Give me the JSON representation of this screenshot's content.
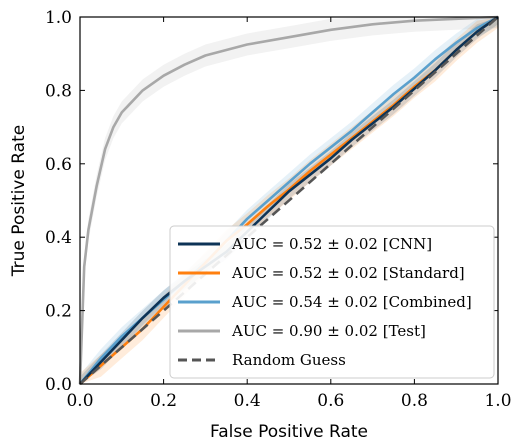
{
  "chart_data": {
    "type": "line",
    "title": "",
    "xlabel": "False Positive Rate",
    "ylabel": "True Positive Rate",
    "xlim": [
      0.0,
      1.0
    ],
    "ylim": [
      0.0,
      1.0
    ],
    "xticks": [
      "0.0",
      "0.2",
      "0.4",
      "0.6",
      "0.8",
      "1.0"
    ],
    "yticks": [
      "0.0",
      "0.2",
      "0.4",
      "0.6",
      "0.8",
      "1.0"
    ],
    "grid": false,
    "legend_position": "bottom-right",
    "series": [
      {
        "name": "AUC = 0.52 ± 0.02 [CNN]",
        "color": "#0d3356",
        "style": "solid",
        "band": 0.02,
        "x": [
          0.0,
          0.05,
          0.1,
          0.15,
          0.2,
          0.25,
          0.3,
          0.35,
          0.4,
          0.45,
          0.5,
          0.55,
          0.6,
          0.65,
          0.7,
          0.75,
          0.8,
          0.85,
          0.9,
          0.95,
          1.0
        ],
        "y": [
          0.0,
          0.06,
          0.12,
          0.18,
          0.235,
          0.28,
          0.32,
          0.36,
          0.415,
          0.47,
          0.525,
          0.57,
          0.615,
          0.665,
          0.71,
          0.755,
          0.805,
          0.855,
          0.91,
          0.96,
          1.0
        ]
      },
      {
        "name": "AUC = 0.52 ± 0.02 [Standard]",
        "color": "#ff7f0e",
        "style": "solid",
        "band": 0.03,
        "x": [
          0.0,
          0.05,
          0.1,
          0.15,
          0.2,
          0.25,
          0.3,
          0.35,
          0.4,
          0.45,
          0.5,
          0.55,
          0.6,
          0.65,
          0.7,
          0.75,
          0.8,
          0.85,
          0.9,
          0.95,
          1.0
        ],
        "y": [
          0.0,
          0.05,
          0.1,
          0.15,
          0.21,
          0.27,
          0.33,
          0.39,
          0.435,
          0.485,
          0.53,
          0.58,
          0.625,
          0.67,
          0.715,
          0.76,
          0.81,
          0.855,
          0.91,
          0.96,
          1.0
        ]
      },
      {
        "name": "AUC = 0.54 ± 0.02 [Combined]",
        "color": "#5aa0cd",
        "style": "solid",
        "band": 0.025,
        "x": [
          0.0,
          0.05,
          0.1,
          0.15,
          0.2,
          0.25,
          0.3,
          0.35,
          0.4,
          0.45,
          0.5,
          0.55,
          0.6,
          0.65,
          0.7,
          0.75,
          0.8,
          0.85,
          0.9,
          0.95,
          1.0
        ],
        "y": [
          0.0,
          0.07,
          0.13,
          0.18,
          0.23,
          0.28,
          0.33,
          0.39,
          0.45,
          0.5,
          0.55,
          0.6,
          0.645,
          0.69,
          0.74,
          0.79,
          0.835,
          0.885,
          0.93,
          0.97,
          1.0
        ]
      },
      {
        "name": "AUC = 0.90 ± 0.02 [Test]",
        "color": "#a8a8a8",
        "style": "solid",
        "band": 0.03,
        "x": [
          0.0,
          0.01,
          0.02,
          0.04,
          0.06,
          0.08,
          0.1,
          0.15,
          0.2,
          0.25,
          0.3,
          0.4,
          0.5,
          0.6,
          0.7,
          0.8,
          0.9,
          1.0
        ],
        "y": [
          0.0,
          0.32,
          0.42,
          0.54,
          0.64,
          0.7,
          0.74,
          0.8,
          0.84,
          0.87,
          0.895,
          0.925,
          0.945,
          0.965,
          0.98,
          0.99,
          0.995,
          1.0
        ]
      },
      {
        "name": "Random Guess",
        "color": "#555555",
        "style": "dashed",
        "x": [
          0.0,
          1.0
        ],
        "y": [
          0.0,
          1.0
        ]
      }
    ]
  }
}
